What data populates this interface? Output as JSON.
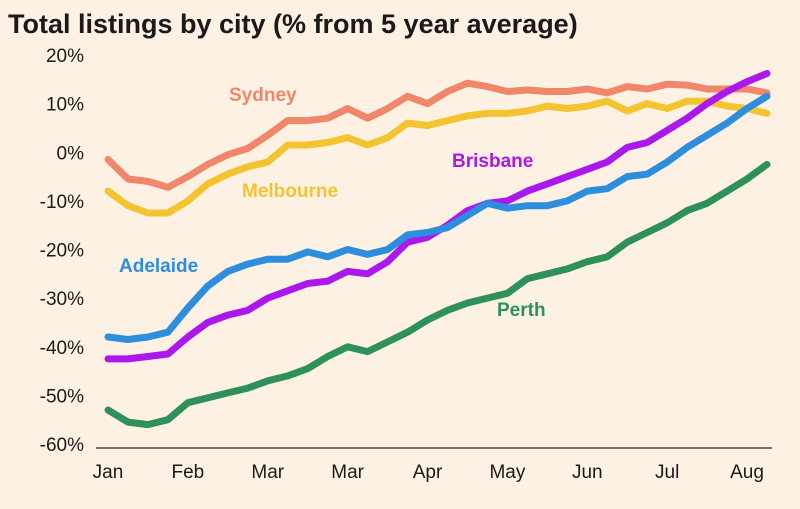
{
  "chart_data": {
    "type": "line",
    "title": "Total listings by city (% from 5 year average)",
    "xlabel": "",
    "ylabel": "",
    "ylim": [
      -60,
      20
    ],
    "yticks": [
      -60,
      -50,
      -40,
      -30,
      -20,
      -10,
      0,
      10,
      20
    ],
    "ytick_labels": [
      "-60%",
      "-50%",
      "-40%",
      "-30%",
      "-20%",
      "-10%",
      "0%",
      "10%",
      "20%"
    ],
    "xticks": [
      {
        "label": "Jan",
        "week": 0
      },
      {
        "label": "Feb",
        "week": 4
      },
      {
        "label": "Mar",
        "week": 8
      },
      {
        "label": "Mar",
        "week": 12
      },
      {
        "label": "Apr",
        "week": 16
      },
      {
        "label": "May",
        "week": 20
      },
      {
        "label": "Jun",
        "week": 24
      },
      {
        "label": "Jul",
        "week": 28
      },
      {
        "label": "Aug",
        "week": 32
      }
    ],
    "x": [
      0,
      1,
      2,
      3,
      4,
      5,
      6,
      7,
      8,
      9,
      10,
      11,
      12,
      13,
      14,
      15,
      16,
      17,
      18,
      19,
      20,
      21,
      22,
      23,
      24,
      25,
      26,
      27,
      28,
      29,
      30,
      31,
      32,
      33
    ],
    "grid": false,
    "legend": "inline labels",
    "series": [
      {
        "name": "Sydney",
        "color": "#f0876a",
        "values": [
          -1.5,
          -5.5,
          -6,
          -7.2,
          -5,
          -2.5,
          -0.5,
          0.8,
          3.5,
          6.5,
          6.5,
          7,
          9,
          7,
          9,
          11.5,
          10,
          12.5,
          14.2,
          13.5,
          12.5,
          12.8,
          12.5,
          12.5,
          13,
          12.2,
          13.5,
          13,
          14,
          13.8,
          13,
          13,
          13,
          12.2
        ]
      },
      {
        "name": "Melbourne",
        "color": "#f3c330",
        "values": [
          -8,
          -11,
          -12.5,
          -12.5,
          -10,
          -6.5,
          -4.5,
          -3,
          -2,
          1.5,
          1.5,
          2,
          3,
          1.5,
          3,
          6,
          5.5,
          6.5,
          7.5,
          8,
          8,
          8.5,
          9.5,
          9,
          9.5,
          10.5,
          8.5,
          10,
          9,
          10.5,
          10.5,
          9.5,
          9,
          8
        ]
      },
      {
        "name": "Brisbane",
        "color": "#aa18ec",
        "values": [
          -42.5,
          -42.5,
          -42,
          -41.5,
          -38,
          -35,
          -33.5,
          -32.5,
          -30,
          -28.5,
          -27,
          -26.5,
          -24.5,
          -25,
          -22.5,
          -18.5,
          -17.5,
          -15,
          -12,
          -10.5,
          -10,
          -8,
          -6.5,
          -5,
          -3.5,
          -2,
          1,
          2,
          4.5,
          7,
          10,
          12.5,
          14.5,
          16.2
        ]
      },
      {
        "name": "Adelaide",
        "color": "#2e8ede",
        "values": [
          -38,
          -38.5,
          -38,
          -37,
          -32,
          -27.5,
          -24.5,
          -23,
          -22,
          -22,
          -20.5,
          -21.5,
          -20,
          -21,
          -20,
          -17,
          -16.5,
          -15.5,
          -13,
          -10.5,
          -11.5,
          -11,
          -11,
          -10,
          -8,
          -7.5,
          -5,
          -4.5,
          -2,
          1,
          3.5,
          6,
          9,
          11.5
        ]
      },
      {
        "name": "Perth",
        "color": "#2e9157",
        "values": [
          -53,
          -55.5,
          -56,
          -55,
          -51.5,
          -50.5,
          -49.5,
          -48.5,
          -47,
          -46,
          -44.5,
          -42,
          -40,
          -41,
          -39,
          -37,
          -34.5,
          -32.5,
          -31,
          -30,
          -29,
          -26,
          -25,
          -24,
          -22.5,
          -21.5,
          -18.5,
          -16.5,
          -14.5,
          -12,
          -10.5,
          -8,
          -5.5,
          -2.5
        ]
      }
    ]
  }
}
